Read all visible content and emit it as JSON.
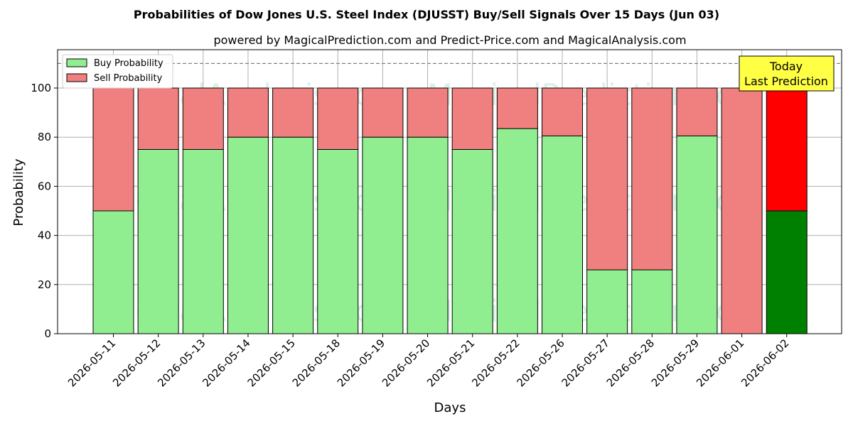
{
  "chart_data": {
    "type": "bar",
    "stacked": true,
    "title": "Probabilities of Dow Jones U.S. Steel Index (DJUSST) Buy/Sell Signals Over 15 Days (Jun 03)",
    "subtitle": "powered by MagicalPrediction.com and Predict-Price.com and MagicalAnalysis.com",
    "xlabel": "Days",
    "ylabel": "Probability",
    "ylim": [
      0,
      115
    ],
    "yticks": [
      0,
      20,
      40,
      60,
      80,
      100
    ],
    "grid": true,
    "legend_placement": "top-left",
    "reference_line": 110,
    "categories": [
      "2026-05-11",
      "2026-05-12",
      "2026-05-13",
      "2026-05-14",
      "2026-05-15",
      "2026-05-18",
      "2026-05-19",
      "2026-05-20",
      "2026-05-21",
      "2026-05-22",
      "2026-05-26",
      "2026-05-27",
      "2026-05-28",
      "2026-05-29",
      "2026-06-01",
      "2026-06-02"
    ],
    "series": [
      {
        "name": "Buy Probability",
        "color": "#90ee90",
        "highlight_color": "#008000",
        "values": [
          50,
          75,
          75,
          80,
          80,
          75,
          80,
          80,
          75,
          83.5,
          80.5,
          26,
          26,
          80.5,
          0,
          50
        ]
      },
      {
        "name": "Sell Probability",
        "color": "#f08080",
        "highlight_color": "#ff0000",
        "values": [
          50,
          25,
          25,
          20,
          20,
          25,
          20,
          20,
          25,
          16.5,
          19.5,
          74,
          74,
          19.5,
          100,
          50
        ]
      }
    ],
    "highlight_index": 15,
    "annotation": {
      "lines": [
        "Today",
        "Last Prediction"
      ],
      "bg_color": "#ffff44"
    },
    "watermarks": [
      "MagicalAnalysis.com",
      "MagicalPrediction.com"
    ]
  }
}
